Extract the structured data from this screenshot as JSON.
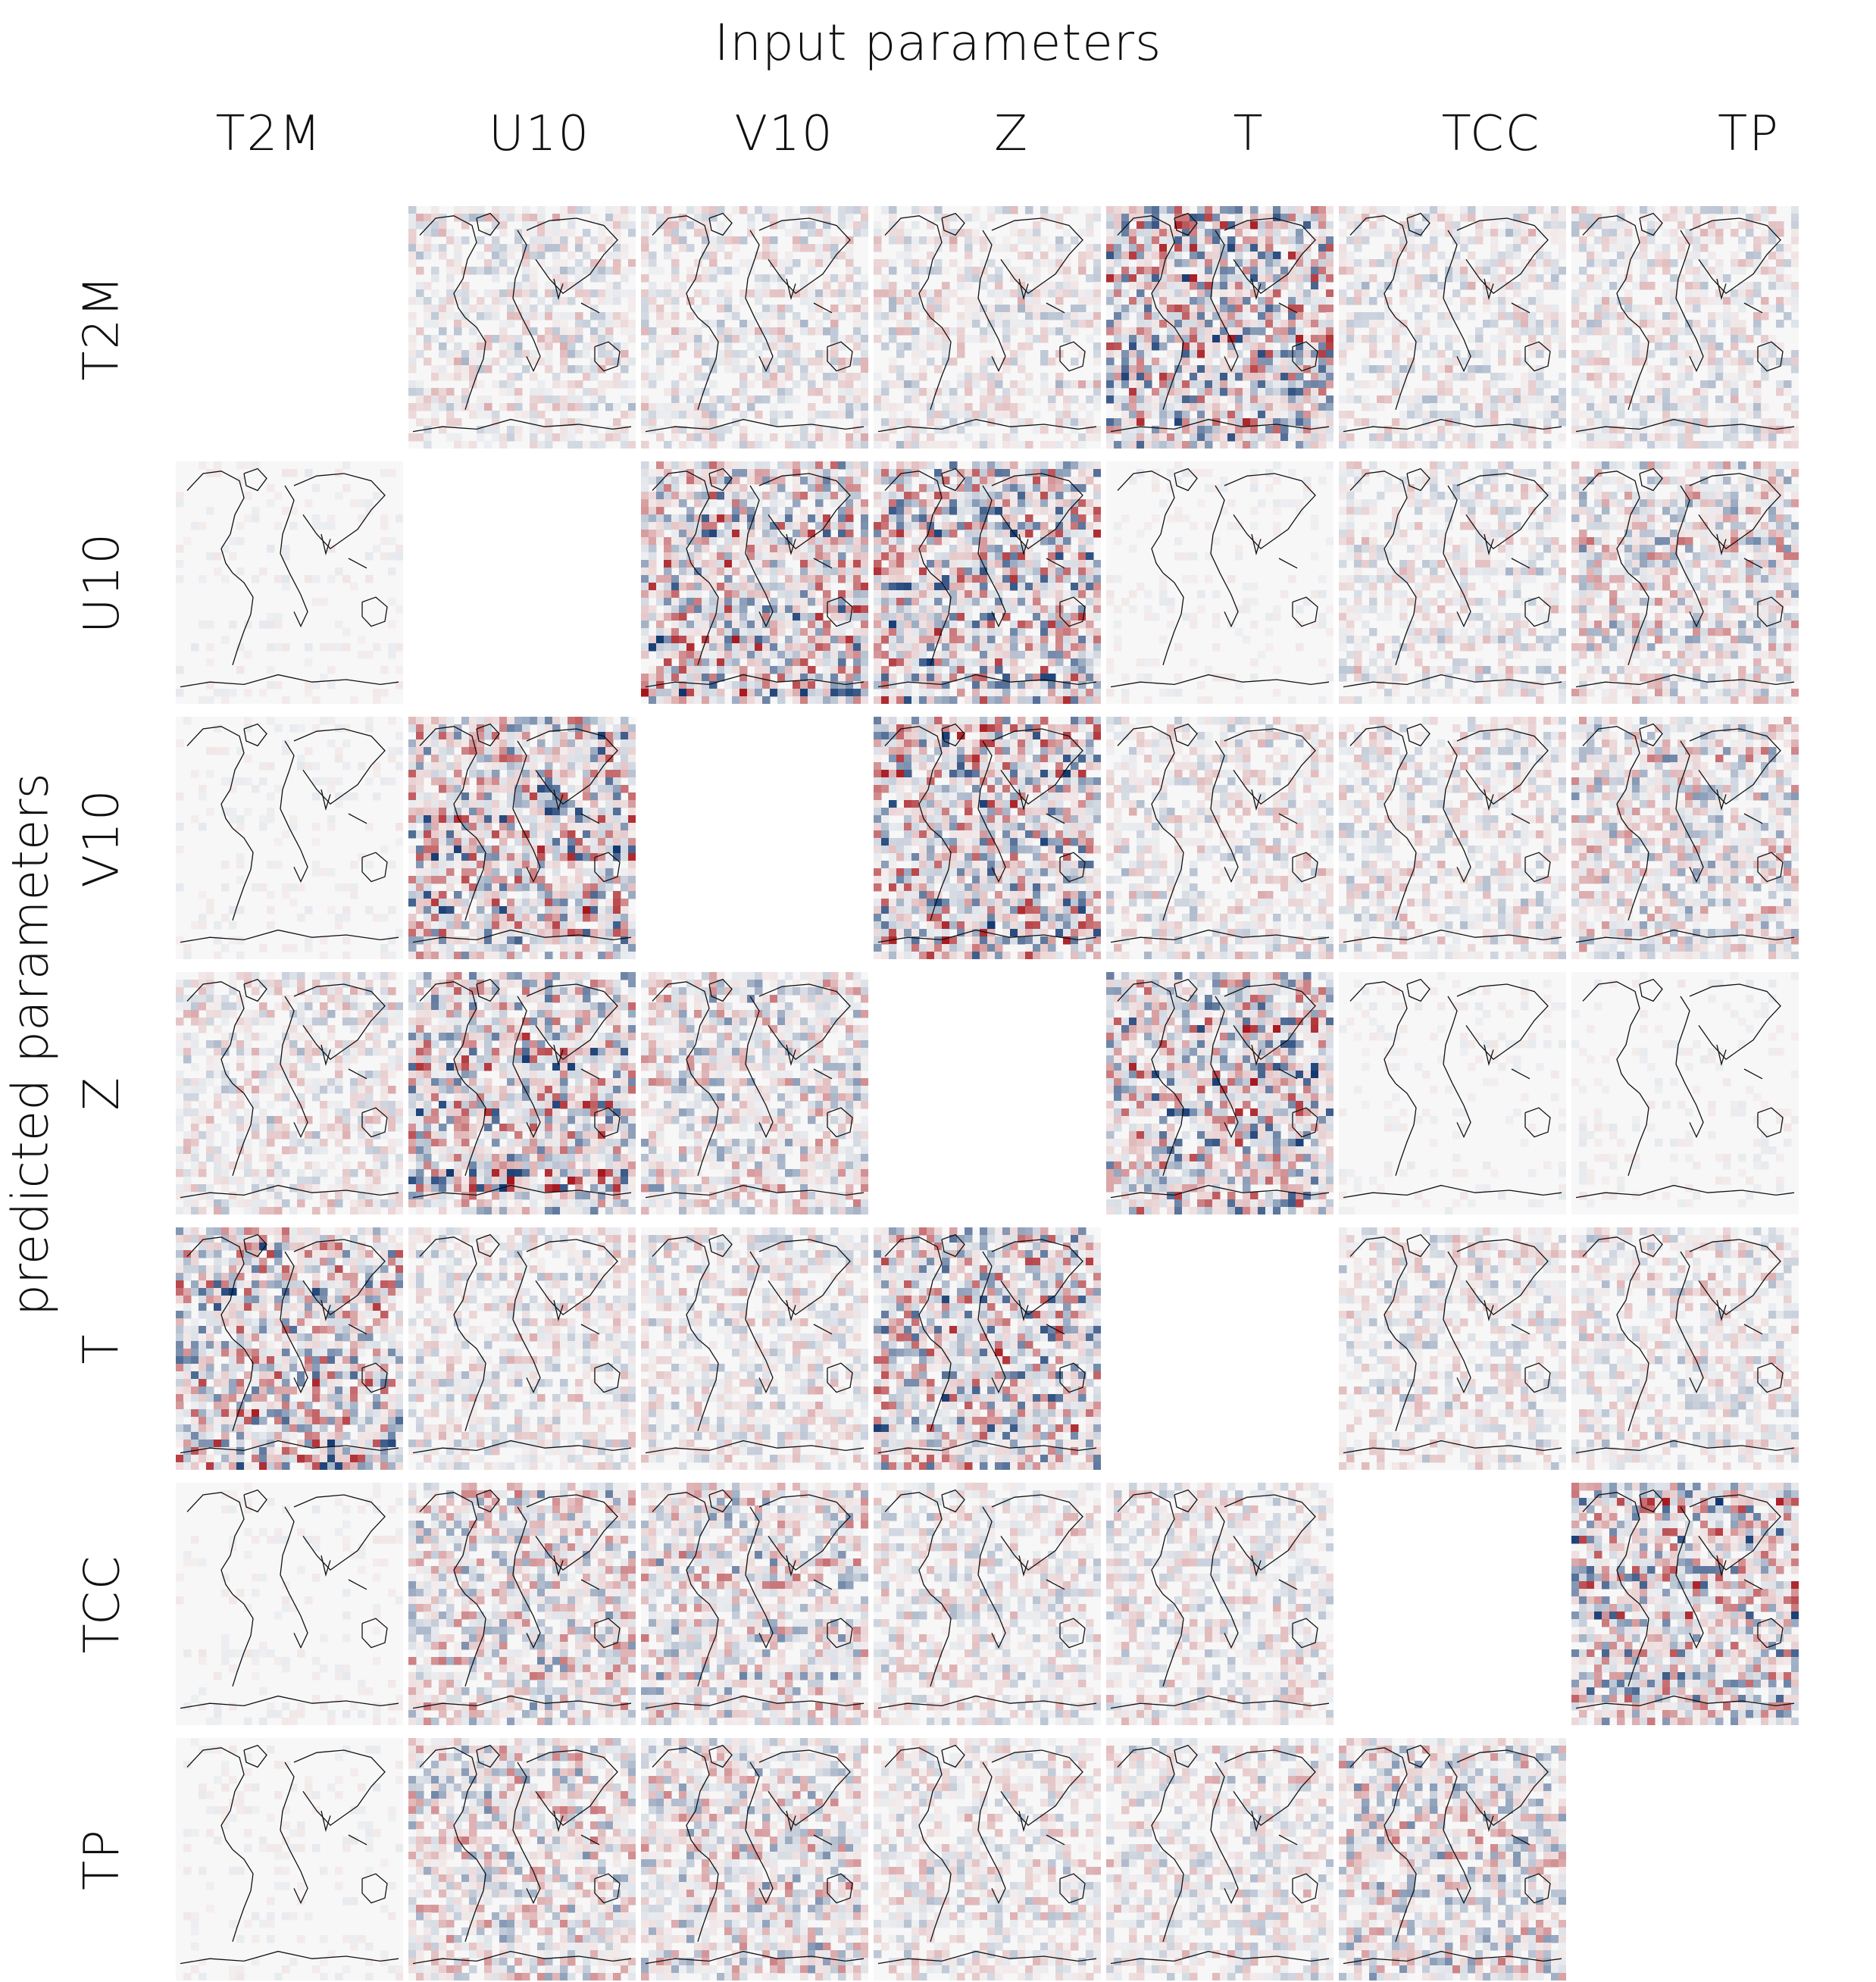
{
  "figure": {
    "title": "Input parameters",
    "y_label": "predicted parameters"
  },
  "columns": [
    "T2M",
    "U10",
    "V10",
    "Z",
    "T",
    "TCC",
    "TP"
  ],
  "rows": [
    "T2M",
    "U10",
    "V10",
    "Z",
    "T",
    "TCC",
    "TP"
  ],
  "tiles": [
    [
      null,
      "weak",
      "weak",
      "weak",
      "strong",
      "weak",
      "weak"
    ],
    [
      "none",
      null,
      "strong",
      "strong",
      "none",
      "weak",
      "medium"
    ],
    [
      "none",
      "strong",
      null,
      "strong",
      "weak",
      "weak",
      "medium"
    ],
    [
      "weak",
      "strong",
      "medium",
      null,
      "strong",
      "none",
      "none"
    ],
    [
      "strong",
      "weak",
      "weak",
      "strong",
      null,
      "weak",
      "weak"
    ],
    [
      "none",
      "medium",
      "medium",
      "weak",
      "weak",
      null,
      "strong"
    ],
    [
      "none",
      "medium",
      "medium",
      "weak",
      "weak",
      "medium",
      null
    ]
  ],
  "colormap": {
    "negative": "#08306b",
    "neutral": "#f7f7f7",
    "positive": "#a50f15"
  }
}
